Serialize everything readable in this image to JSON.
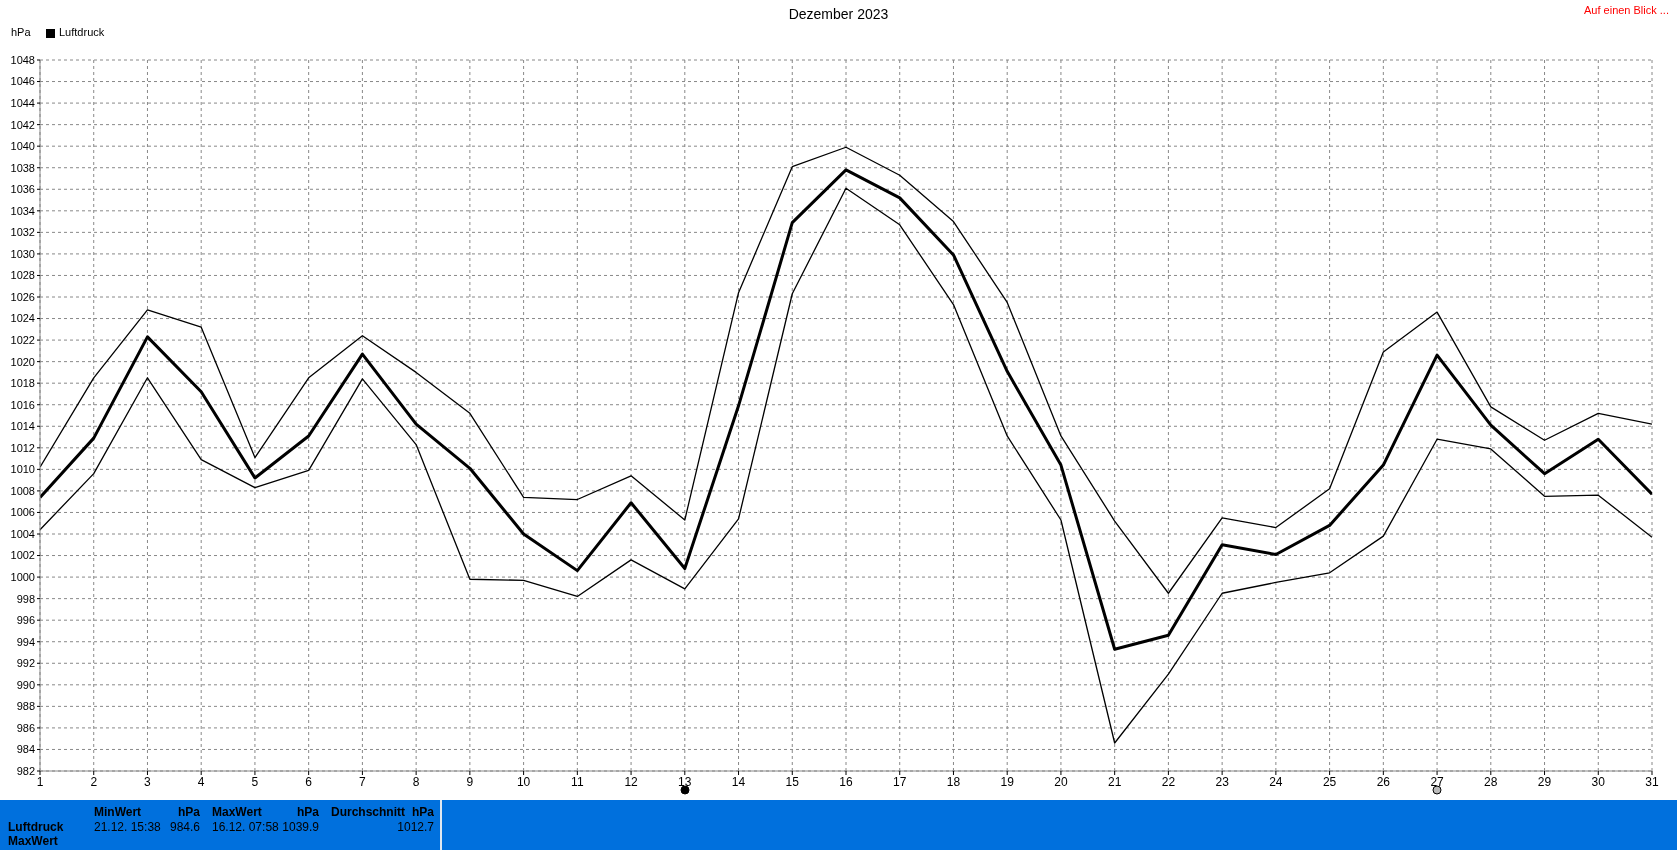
{
  "chart_data": {
    "type": "line",
    "title": "Dezember 2023",
    "ylabel": "hPa",
    "x": [
      1,
      2,
      3,
      4,
      5,
      6,
      7,
      8,
      9,
      10,
      11,
      12,
      13,
      14,
      15,
      16,
      17,
      18,
      19,
      20,
      21,
      22,
      23,
      24,
      25,
      26,
      27,
      28,
      29,
      30,
      31
    ],
    "series": [
      {
        "color": "#000000",
        "values": [
          1010.2,
          1018.5,
          1024.8,
          1023.2,
          1011.1,
          1018.5,
          1022.4,
          1019.0,
          1015.2,
          1007.4,
          1007.2,
          1009.4,
          1005.3,
          1026.4,
          1038.1,
          1039.9,
          1037.3,
          1033.0,
          1025.5,
          1013.1,
          1005.2,
          998.5,
          1005.5,
          1004.6,
          1008.2,
          1020.9,
          1024.6,
          1015.8,
          1012.7,
          1015.2,
          1014.2
        ]
      },
      {
        "name": "Luftdruck",
        "color": "#000000",
        "values": [
          1007.4,
          1012.9,
          1022.3,
          1017.2,
          1009.2,
          1013.1,
          1020.7,
          1014.2,
          1010.1,
          1004.0,
          1000.6,
          1006.9,
          1000.8,
          1015.9,
          1032.9,
          1037.8,
          1035.2,
          1029.9,
          1019.1,
          1010.4,
          993.3,
          994.6,
          1003.0,
          1002.1,
          1004.8,
          1010.4,
          1020.6,
          1014.1,
          1009.6,
          1012.8,
          1007.7
        ]
      },
      {
        "color": "#000000",
        "values": [
          1004.4,
          1009.6,
          1018.5,
          1010.9,
          1008.3,
          1009.9,
          1018.4,
          1012.3,
          999.8,
          999.7,
          998.2,
          1001.6,
          998.9,
          1005.4,
          1026.3,
          1036.1,
          1032.7,
          1025.3,
          1013.1,
          1005.3,
          984.6,
          991.0,
          998.5,
          999.5,
          1000.4,
          1003.8,
          1012.8,
          1011.9,
          1007.5,
          1007.6,
          1003.7
        ]
      }
    ],
    "xlim": [
      1,
      31
    ],
    "xticks": [
      1,
      2,
      3,
      4,
      5,
      6,
      7,
      8,
      9,
      10,
      11,
      12,
      13,
      14,
      15,
      16,
      17,
      18,
      19,
      20,
      21,
      22,
      23,
      24,
      25,
      26,
      27,
      28,
      29,
      30,
      31
    ],
    "ylim": [
      982,
      1048
    ],
    "yticks": [
      982,
      984,
      986,
      988,
      990,
      992,
      994,
      996,
      998,
      1000,
      1002,
      1004,
      1006,
      1008,
      1010,
      1012,
      1014,
      1016,
      1018,
      1020,
      1022,
      1024,
      1026,
      1028,
      1030,
      1032,
      1034,
      1036,
      1038,
      1040,
      1042,
      1044,
      1046,
      1048
    ],
    "grid": true,
    "legend": "top left",
    "marker": "none",
    "line_style": "solid",
    "annotations": [
      "Auf einen Blick ...",
      "Luftdruck",
      "MaxWert",
      "MinWert",
      "hPa",
      "21.12.  15:38",
      "984.6",
      "MaxWert",
      "hPa",
      "16.12.  07:58",
      "1039.9",
      "Durchschnitt",
      "hPa",
      "1012.7"
    ]
  }
}
